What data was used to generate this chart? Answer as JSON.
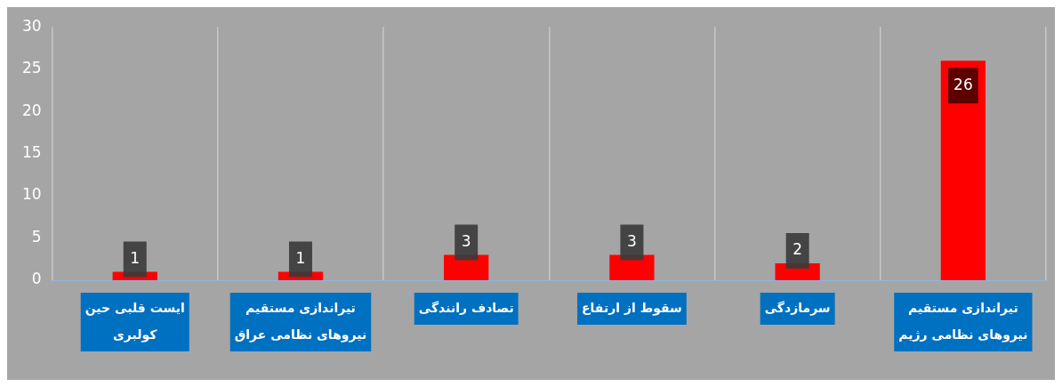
{
  "chart_data": {
    "type": "bar",
    "categories": [
      "ایست قلبی حین کولبری",
      "تیراندازی مستقیم نیروهای نظامی عراق",
      "تصادف رانندگی",
      "سقوط از ارتفاع",
      "سرمازدگی",
      "تیراندازی مستقیم نیروهای نظامی رژیم"
    ],
    "values": [
      1,
      1,
      3,
      3,
      2,
      26
    ],
    "color": "#ff0000",
    "ylim": [
      0,
      30
    ],
    "yticks": [
      0,
      5,
      10,
      15,
      20,
      25,
      30
    ],
    "grid": "x",
    "legend": false,
    "data_labels": true
  }
}
